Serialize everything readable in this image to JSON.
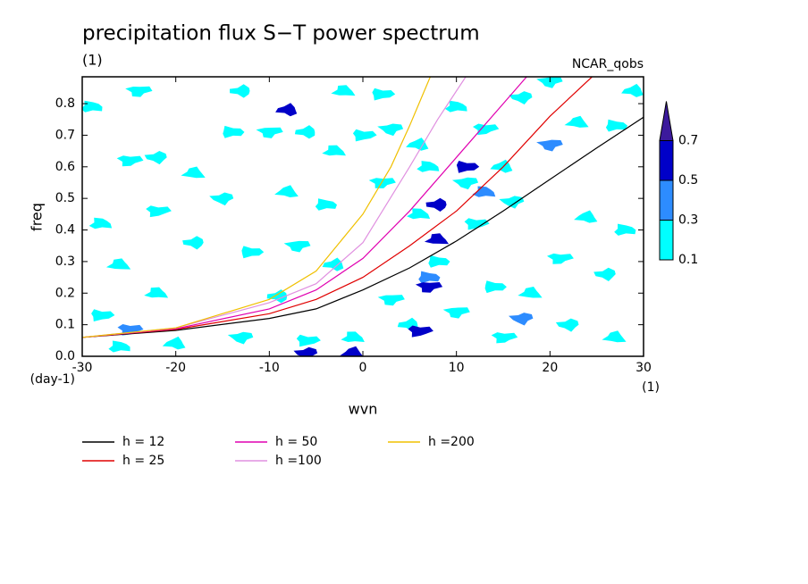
{
  "chart_data": {
    "type": "contour",
    "title": "precipitation flux S−T power spectrum",
    "subtitle": "(1)",
    "source": "NCAR_qobs",
    "x_label": "wvn",
    "y_label": "freq",
    "x_unit": "(1)",
    "y_unit": "(day-1)",
    "xlim": [
      -30,
      30
    ],
    "ylim": [
      0,
      0.885
    ],
    "xticks": [
      -30,
      -20,
      -10,
      0,
      10,
      20,
      30
    ],
    "yticks": [
      {
        "value": 0,
        "label": "0.0"
      },
      0.1,
      0.2,
      0.3,
      0.4,
      0.5,
      0.6,
      0.7,
      0.8
    ],
    "colorbar": {
      "levels": [
        0.1,
        0.3,
        0.5,
        0.7
      ],
      "colors": [
        "#00ffff",
        "#2d8cff",
        "#0000c8",
        "#3c1a9c"
      ]
    },
    "blobs": {
      "x": [
        -29,
        -25,
        -22,
        -18,
        -14,
        -10,
        -6,
        -3,
        0,
        3,
        6,
        10,
        13,
        17,
        23,
        27,
        -24,
        -13,
        -2,
        2,
        20,
        29,
        -28,
        -22,
        -15,
        -8,
        -4,
        2,
        -18,
        -26,
        -12,
        -7,
        -3,
        6,
        12,
        16,
        24,
        28,
        21,
        26,
        18,
        14,
        10,
        5,
        -1,
        -6,
        -13,
        -20,
        -26,
        15,
        22,
        27,
        8,
        3,
        -9,
        -22,
        -28,
        11,
        15,
        7,
        -25,
        -6,
        -1,
        7,
        7,
        8,
        8,
        11,
        20,
        -8,
        13,
        6,
        17
      ],
      "y": [
        0.79,
        0.62,
        0.63,
        0.58,
        0.71,
        0.71,
        0.71,
        0.65,
        0.7,
        0.72,
        0.67,
        0.79,
        0.72,
        0.82,
        0.74,
        0.73,
        0.84,
        0.84,
        0.84,
        0.83,
        0.87,
        0.84,
        0.42,
        0.46,
        0.5,
        0.52,
        0.48,
        0.55,
        0.36,
        0.29,
        0.33,
        0.35,
        0.29,
        0.45,
        0.42,
        0.49,
        0.44,
        0.4,
        0.31,
        0.26,
        0.2,
        0.22,
        0.14,
        0.1,
        0.06,
        0.05,
        0.06,
        0.04,
        0.03,
        0.06,
        0.1,
        0.06,
        0.3,
        0.18,
        0.19,
        0.2,
        0.13,
        0.55,
        0.6,
        0.6,
        0.085,
        0.01,
        0.01,
        0.25,
        0.22,
        0.48,
        0.37,
        0.6,
        0.67,
        0.78,
        0.52,
        0.08,
        0.12
      ],
      "level": [
        0.1,
        0.1,
        0.1,
        0.1,
        0.1,
        0.1,
        0.1,
        0.1,
        0.1,
        0.1,
        0.1,
        0.1,
        0.1,
        0.1,
        0.1,
        0.1,
        0.1,
        0.1,
        0.1,
        0.1,
        0.1,
        0.1,
        0.1,
        0.1,
        0.1,
        0.1,
        0.1,
        0.1,
        0.1,
        0.1,
        0.1,
        0.1,
        0.1,
        0.1,
        0.1,
        0.1,
        0.1,
        0.1,
        0.1,
        0.1,
        0.1,
        0.1,
        0.1,
        0.1,
        0.1,
        0.1,
        0.1,
        0.1,
        0.1,
        0.1,
        0.1,
        0.1,
        0.1,
        0.1,
        0.1,
        0.1,
        0.1,
        0.1,
        0.1,
        0.1,
        0.3,
        0.5,
        0.5,
        0.3,
        0.5,
        0.5,
        0.5,
        0.5,
        0.3,
        0.5,
        0.3,
        0.5,
        0.3
      ]
    },
    "series": [
      {
        "name": "h = 12",
        "color": "#000000",
        "x": [
          -30,
          -20,
          -10,
          -5,
          0,
          5,
          10,
          15,
          20,
          25,
          30
        ],
        "y": [
          0.06,
          0.082,
          0.12,
          0.15,
          0.21,
          0.28,
          0.365,
          0.46,
          0.56,
          0.66,
          0.757
        ]
      },
      {
        "name": "h = 25",
        "color": "#e00000",
        "x": [
          -30,
          -20,
          -10,
          -5,
          0,
          5,
          10,
          15,
          20,
          24.5
        ],
        "y": [
          0.06,
          0.085,
          0.135,
          0.18,
          0.25,
          0.35,
          0.46,
          0.6,
          0.76,
          0.885
        ]
      },
      {
        "name": "h = 50",
        "color": "#e000b0",
        "x": [
          -30,
          -20,
          -10,
          -5,
          0,
          5,
          10,
          15,
          17.5
        ],
        "y": [
          0.06,
          0.087,
          0.15,
          0.21,
          0.31,
          0.46,
          0.63,
          0.8,
          0.885
        ]
      },
      {
        "name": "h =100",
        "color": "#e090e0",
        "x": [
          -30,
          -20,
          -10,
          -5,
          0,
          5,
          8,
          11
        ],
        "y": [
          0.06,
          0.09,
          0.17,
          0.23,
          0.36,
          0.6,
          0.75,
          0.885
        ]
      },
      {
        "name": "h =200",
        "color": "#f0c000",
        "x": [
          -30,
          -20,
          -10,
          -5,
          0,
          3,
          5,
          7.2
        ],
        "y": [
          0.06,
          0.09,
          0.18,
          0.27,
          0.45,
          0.6,
          0.73,
          0.885
        ]
      }
    ]
  }
}
